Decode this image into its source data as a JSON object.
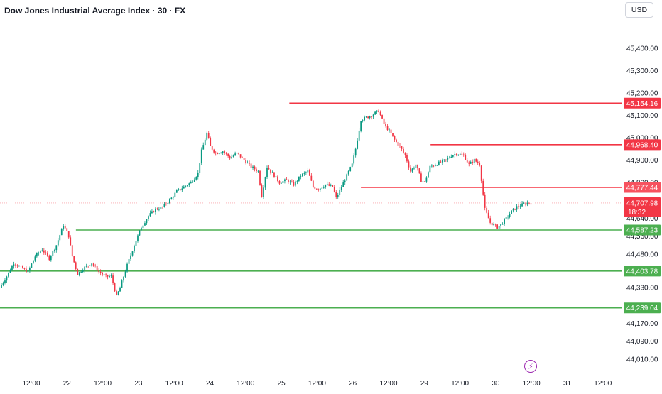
{
  "header": {
    "title": "Dow Jones Industrial Average Index · 30 · FX",
    "currency": "USD"
  },
  "icons": {
    "event_marker": "lightning-bolt-icon"
  },
  "colors": {
    "up": "#089981",
    "down": "#f23645",
    "support": "#4caf50",
    "resistance": "#f23645",
    "resistance_light": "#f7525f",
    "last_price": "#f23645",
    "text": "#131722",
    "grid": "#f0f3fa"
  },
  "chart_data": {
    "type": "candlestick",
    "title": "Dow Jones Industrial Average Index · 30 · FX",
    "ylim": [
      43940,
      45520
    ],
    "y_ticks": [
      {
        "value": 45400,
        "label": "45,400.00"
      },
      {
        "value": 45300,
        "label": "45,300.00"
      },
      {
        "value": 45200,
        "label": "45,200.00"
      },
      {
        "value": 45100,
        "label": "45,100.00"
      },
      {
        "value": 45000,
        "label": "45,000.00"
      },
      {
        "value": 44900,
        "label": "44,900.00"
      },
      {
        "value": 44800,
        "label": "44,800.00"
      },
      {
        "value": 44640,
        "label": "44,640.00"
      },
      {
        "value": 44560,
        "label": "44,560.00"
      },
      {
        "value": 44480,
        "label": "44,480.00"
      },
      {
        "value": 44330,
        "label": "44,330.00"
      },
      {
        "value": 44170,
        "label": "44,170.00"
      },
      {
        "value": 44090,
        "label": "44,090.00"
      },
      {
        "value": 44010,
        "label": "44,010.00"
      }
    ],
    "x_ticks": [
      "12:00",
      "22",
      "12:00",
      "23",
      "12:00",
      "24",
      "12:00",
      "25",
      "12:00",
      "26",
      "12:00",
      "29",
      "12:00",
      "30",
      "12:00",
      "31",
      "12:00"
    ],
    "levels": [
      {
        "value": 45154.16,
        "label": "45,154.16",
        "kind": "resistance",
        "x_start_frac": 0.465
      },
      {
        "value": 44968.4,
        "label": "44,968.40",
        "kind": "resistance",
        "x_start_frac": 0.692
      },
      {
        "value": 44777.44,
        "label": "44,777.44",
        "kind": "resistance_light",
        "x_start_frac": 0.58
      },
      {
        "value": 44587.23,
        "label": "44,587.23",
        "kind": "support",
        "x_start_frac": 0.122
      },
      {
        "value": 44403.78,
        "label": "44,403.78",
        "kind": "support",
        "x_start_frac": 0.0
      },
      {
        "value": 44239.04,
        "label": "44,239.04",
        "kind": "support",
        "x_start_frac": 0.0
      }
    ],
    "last_price": {
      "value": 44707.98,
      "label": "44,707.98",
      "countdown": "18:32"
    },
    "anchors": [
      [
        0,
        44330
      ],
      [
        4,
        44380
      ],
      [
        8,
        44440
      ],
      [
        12,
        44420
      ],
      [
        16,
        44400
      ],
      [
        20,
        44470
      ],
      [
        24,
        44500
      ],
      [
        28,
        44460
      ],
      [
        32,
        44520
      ],
      [
        36,
        44610
      ],
      [
        39,
        44560
      ],
      [
        41,
        44470
      ],
      [
        44,
        44390
      ],
      [
        48,
        44420
      ],
      [
        52,
        44440
      ],
      [
        56,
        44400
      ],
      [
        60,
        44380
      ],
      [
        63,
        44380
      ],
      [
        66,
        44290
      ],
      [
        68,
        44330
      ],
      [
        72,
        44430
      ],
      [
        76,
        44520
      ],
      [
        80,
        44600
      ],
      [
        84,
        44650
      ],
      [
        88,
        44680
      ],
      [
        92,
        44690
      ],
      [
        96,
        44720
      ],
      [
        100,
        44760
      ],
      [
        104,
        44780
      ],
      [
        108,
        44800
      ],
      [
        112,
        44840
      ],
      [
        114,
        44940
      ],
      [
        117,
        45020
      ],
      [
        119,
        44960
      ],
      [
        122,
        44930
      ],
      [
        126,
        44940
      ],
      [
        130,
        44910
      ],
      [
        134,
        44930
      ],
      [
        138,
        44900
      ],
      [
        142,
        44870
      ],
      [
        146,
        44850
      ],
      [
        148,
        44740
      ],
      [
        151,
        44870
      ],
      [
        154,
        44840
      ],
      [
        158,
        44800
      ],
      [
        162,
        44810
      ],
      [
        166,
        44790
      ],
      [
        170,
        44830
      ],
      [
        174,
        44850
      ],
      [
        177,
        44780
      ],
      [
        180,
        44770
      ],
      [
        184,
        44790
      ],
      [
        188,
        44780
      ],
      [
        190,
        44730
      ],
      [
        193,
        44780
      ],
      [
        196,
        44830
      ],
      [
        199,
        44880
      ],
      [
        201,
        44950
      ],
      [
        204,
        45080
      ],
      [
        207,
        45090
      ],
      [
        210,
        45100
      ],
      [
        214,
        45120
      ],
      [
        217,
        45060
      ],
      [
        220,
        45030
      ],
      [
        223,
        44990
      ],
      [
        226,
        44960
      ],
      [
        229,
        44920
      ],
      [
        232,
        44850
      ],
      [
        235,
        44880
      ],
      [
        238,
        44810
      ],
      [
        240,
        44800
      ],
      [
        243,
        44870
      ],
      [
        246,
        44880
      ],
      [
        249,
        44890
      ],
      [
        252,
        44900
      ],
      [
        255,
        44920
      ],
      [
        258,
        44930
      ],
      [
        262,
        44920
      ],
      [
        265,
        44880
      ],
      [
        268,
        44900
      ],
      [
        271,
        44880
      ],
      [
        274,
        44680
      ],
      [
        277,
        44620
      ],
      [
        279,
        44610
      ],
      [
        281,
        44600
      ],
      [
        283,
        44610
      ],
      [
        286,
        44640
      ],
      [
        289,
        44670
      ],
      [
        292,
        44690
      ],
      [
        295,
        44700
      ],
      [
        298,
        44708
      ]
    ]
  }
}
